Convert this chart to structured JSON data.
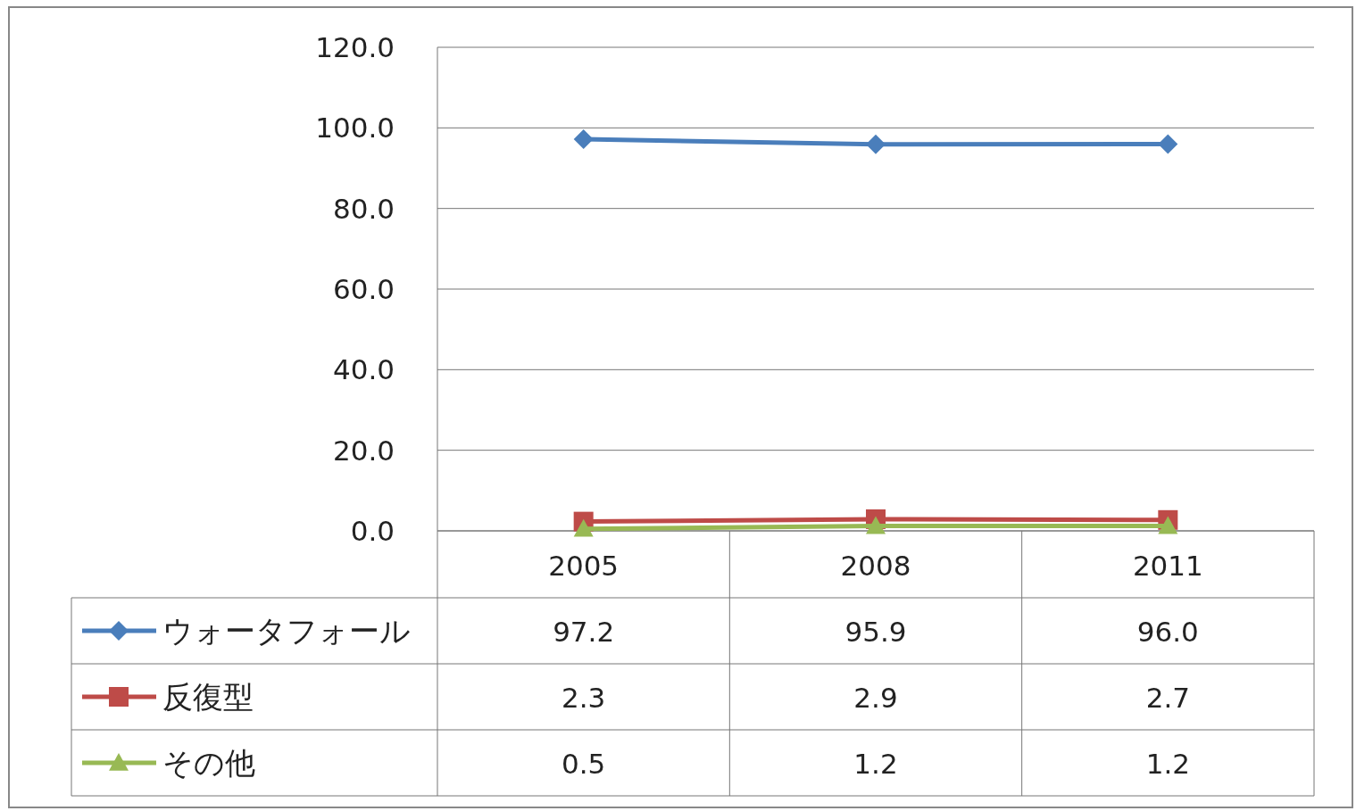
{
  "chart_data": {
    "type": "line",
    "categories": [
      "2005",
      "2008",
      "2011"
    ],
    "series": [
      {
        "name": "ウォータフォール",
        "color": "#4a7ebb",
        "marker": "diamond",
        "values": [
          97.2,
          95.9,
          96.0
        ],
        "value_labels": [
          "97.2",
          "95.9",
          "96.0"
        ]
      },
      {
        "name": "反復型",
        "color": "#be4b48",
        "marker": "square",
        "values": [
          2.3,
          2.9,
          2.7
        ],
        "value_labels": [
          "2.3",
          "2.9",
          "2.7"
        ]
      },
      {
        "name": "その他",
        "color": "#98b954",
        "marker": "triangle",
        "values": [
          0.5,
          1.2,
          1.2
        ],
        "value_labels": [
          "0.5",
          "1.2",
          "1.2"
        ]
      }
    ],
    "ylim": [
      0,
      120
    ],
    "yticks": [
      {
        "value": 0,
        "label": "0.0"
      },
      {
        "value": 20,
        "label": "20.0"
      },
      {
        "value": 40,
        "label": "40.0"
      },
      {
        "value": 60,
        "label": "60.0"
      },
      {
        "value": 80,
        "label": "80.0"
      },
      {
        "value": 100,
        "label": "100.0"
      },
      {
        "value": 120,
        "label": "120.0"
      }
    ],
    "grid": "y",
    "legend": "bottom",
    "line_style": "solid"
  }
}
